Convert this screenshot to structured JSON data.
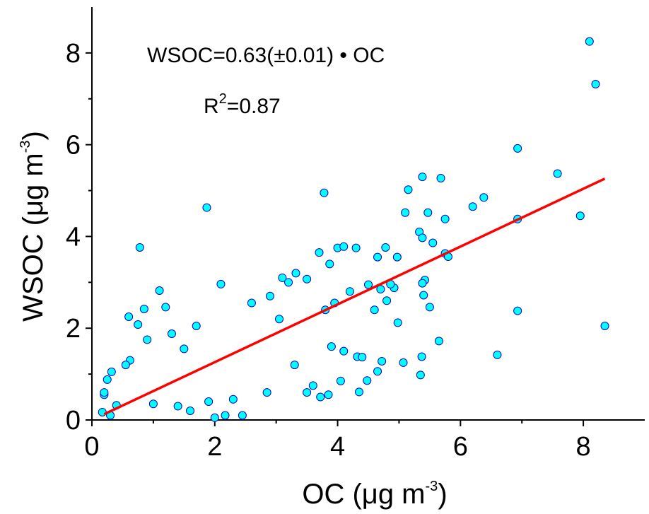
{
  "chart_data": {
    "type": "scatter",
    "xlabel": {
      "main": "OC (μg m",
      "sup": "-3",
      "close": ")"
    },
    "ylabel": {
      "main": "WSOC (μg m",
      "sup": "-3",
      "close": ")"
    },
    "xlim": [
      0,
      9
    ],
    "ylim": [
      0,
      9
    ],
    "x_ticks": [
      0,
      2,
      4,
      6,
      8
    ],
    "y_ticks": [
      0,
      2,
      4,
      6,
      8
    ],
    "x_tick_labels": [
      "0",
      "2",
      "4",
      "6",
      "8"
    ],
    "y_tick_labels": [
      "0",
      "2",
      "4",
      "6",
      "8"
    ],
    "grid": false,
    "annotations": {
      "equation": "WSOC=0.63(±0.01) • OC",
      "r2_prefix": "R",
      "r2_sup": "2",
      "r2_value": "=0.87"
    },
    "fit_line": {
      "slope": 0.63,
      "x_range": [
        0.2,
        8.35
      ],
      "color": "#ff0000"
    },
    "marker_color": "#00ffff",
    "marker_edge": "#0000cc",
    "points": [
      [
        8.1,
        8.25
      ],
      [
        8.2,
        7.32
      ],
      [
        6.93,
        5.92
      ],
      [
        7.58,
        5.37
      ],
      [
        7.95,
        4.45
      ],
      [
        8.35,
        2.05
      ],
      [
        6.93,
        2.38
      ],
      [
        6.6,
        1.42
      ],
      [
        6.93,
        4.38
      ],
      [
        6.38,
        4.85
      ],
      [
        6.2,
        4.65
      ],
      [
        5.68,
        5.27
      ],
      [
        5.38,
        5.3
      ],
      [
        5.15,
        5.02
      ],
      [
        5.1,
        4.52
      ],
      [
        5.47,
        4.52
      ],
      [
        5.75,
        4.38
      ],
      [
        5.33,
        4.1
      ],
      [
        5.38,
        3.97
      ],
      [
        5.55,
        3.86
      ],
      [
        5.75,
        3.63
      ],
      [
        5.8,
        3.56
      ],
      [
        5.42,
        3.05
      ],
      [
        5.4,
        2.72
      ],
      [
        5.38,
        2.98
      ],
      [
        5.5,
        2.46
      ],
      [
        5.65,
        1.72
      ],
      [
        5.37,
        1.38
      ],
      [
        5.07,
        1.25
      ],
      [
        5.35,
        0.98
      ],
      [
        3.78,
        4.95
      ],
      [
        1.87,
        4.63
      ],
      [
        0.78,
        3.76
      ],
      [
        4.72,
        1.28
      ],
      [
        4.65,
        1.06
      ],
      [
        4.32,
        1.38
      ],
      [
        4.4,
        1.37
      ],
      [
        4.48,
        0.86
      ],
      [
        4.35,
        0.61
      ],
      [
        4.65,
        3.55
      ],
      [
        4.78,
        3.76
      ],
      [
        4.97,
        3.55
      ],
      [
        4.92,
        2.88
      ],
      [
        4.98,
        2.12
      ],
      [
        4.86,
        2.96
      ],
      [
        4.3,
        3.75
      ],
      [
        4.0,
        3.75
      ],
      [
        4.1,
        3.78
      ],
      [
        3.87,
        3.4
      ],
      [
        3.7,
        3.65
      ],
      [
        3.5,
        3.07
      ],
      [
        3.32,
        3.2
      ],
      [
        3.1,
        3.1
      ],
      [
        3.2,
        3.0
      ],
      [
        2.1,
        2.96
      ],
      [
        1.1,
        2.82
      ],
      [
        0.85,
        2.42
      ],
      [
        0.6,
        2.25
      ],
      [
        0.75,
        2.08
      ],
      [
        1.2,
        2.46
      ],
      [
        1.3,
        1.88
      ],
      [
        0.62,
        1.3
      ],
      [
        0.32,
        1.05
      ],
      [
        0.25,
        0.88
      ],
      [
        0.2,
        0.55
      ],
      [
        0.17,
        0.17
      ],
      [
        0.3,
        0.1
      ],
      [
        0.2,
        0.6
      ],
      [
        0.4,
        0.32
      ],
      [
        2.17,
        0.1
      ],
      [
        2.45,
        0.1
      ],
      [
        2.85,
        0.6
      ],
      [
        3.5,
        0.6
      ],
      [
        3.72,
        0.5
      ],
      [
        3.85,
        0.55
      ],
      [
        4.05,
        0.85
      ],
      [
        3.6,
        0.75
      ],
      [
        2.0,
        0.05
      ],
      [
        0.55,
        1.2
      ],
      [
        0.9,
        1.75
      ],
      [
        1.0,
        0.35
      ],
      [
        1.4,
        0.3
      ],
      [
        1.6,
        0.2
      ],
      [
        1.9,
        0.4
      ],
      [
        2.3,
        0.45
      ],
      [
        3.3,
        1.2
      ],
      [
        3.8,
        2.4
      ],
      [
        3.95,
        2.55
      ],
      [
        4.2,
        2.8
      ],
      [
        4.5,
        2.95
      ],
      [
        4.6,
        2.4
      ],
      [
        4.7,
        2.85
      ],
      [
        4.8,
        2.6
      ],
      [
        4.1,
        1.5
      ],
      [
        3.9,
        1.6
      ],
      [
        2.6,
        2.55
      ],
      [
        2.9,
        2.7
      ],
      [
        3.05,
        2.2
      ],
      [
        1.7,
        2.05
      ],
      [
        1.5,
        1.55
      ]
    ]
  }
}
